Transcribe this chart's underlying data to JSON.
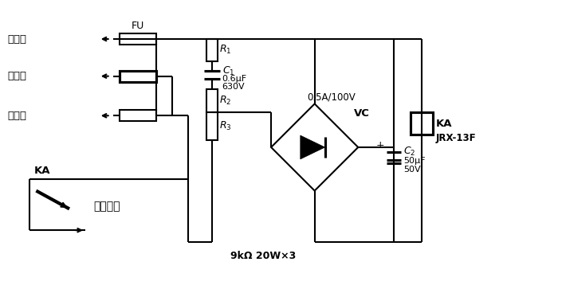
{
  "background_color": "#ffffff",
  "line_color": "#000000",
  "line_width": 1.5,
  "labels": {
    "fu": "FU",
    "r1": "$R_1$",
    "r2": "$R_2$",
    "r3": "$R_3$",
    "c1": "$C_1$",
    "c1_val1": "0.6μF",
    "c1_val2": "630V",
    "c2": "$C_2$",
    "c2_val1": "50μF",
    "c2_val2": "50V",
    "vc": "VC",
    "ka_relay": "KA",
    "jrx": "JRX-13F",
    "diode_label": "0.5A/100V",
    "ka_left": "KA",
    "alarm": "去报警器",
    "low_voltage": "低压总",
    "breaker": "断路器",
    "outlet": "出线端",
    "bottom_label": "9kΩ 20W×3",
    "plus": "+"
  }
}
